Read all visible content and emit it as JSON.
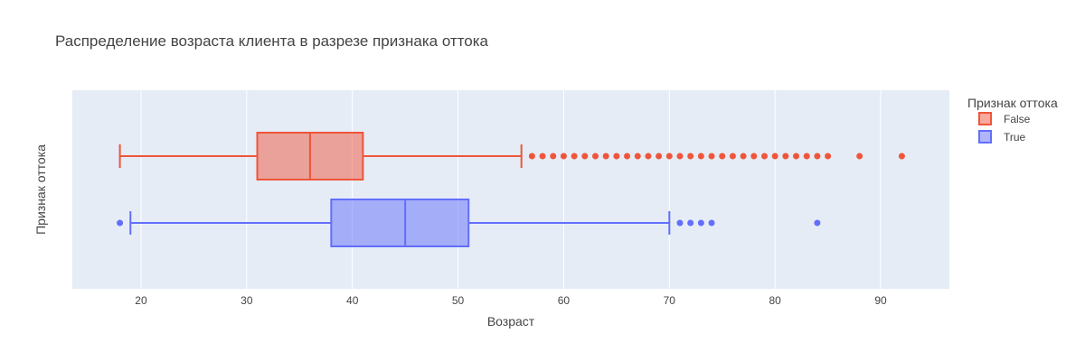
{
  "chart_data": {
    "type": "box",
    "orientation": "horizontal",
    "title": "Распределение возраста клиента в разрезе признака оттока",
    "xlabel": "Возраст",
    "ylabel": "Признак оттока",
    "xlim": [
      13.5,
      96.5
    ],
    "xticks": [
      20,
      30,
      40,
      50,
      60,
      70,
      80,
      90
    ],
    "grid": true,
    "legend": {
      "title": "Признак оттока",
      "placement": "top-right outside"
    },
    "series": [
      {
        "name": "False",
        "color": "#EF553B",
        "whisker_low": 18,
        "q1": 31,
        "median": 36,
        "q3": 41,
        "whisker_high": 56,
        "outliers": [
          57,
          58,
          59,
          60,
          61,
          62,
          63,
          64,
          65,
          66,
          67,
          68,
          69,
          70,
          71,
          72,
          73,
          74,
          75,
          76,
          77,
          78,
          79,
          80,
          81,
          82,
          83,
          84,
          85,
          88,
          92
        ]
      },
      {
        "name": "True",
        "color": "#636EFA",
        "whisker_low": 19,
        "q1": 38,
        "median": 45,
        "q3": 51,
        "whisker_high": 70,
        "outliers": [
          18,
          71,
          72,
          73,
          74,
          84
        ]
      }
    ]
  }
}
